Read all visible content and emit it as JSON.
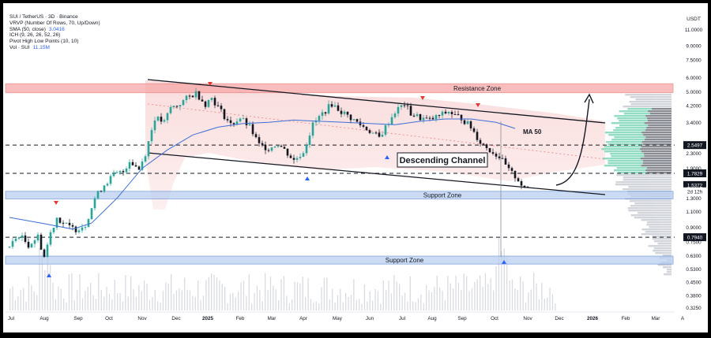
{
  "chart_data": {
    "type": "candlestick",
    "symbol": "SUI / TetherUS · 3D · Binance",
    "currency": "USDT",
    "indicators": [
      {
        "label": "VRVP (Number Of Rows, 70, Up/Down)",
        "value": ""
      },
      {
        "label": "SMA (50, close)",
        "value": "3.0416"
      },
      {
        "label": "ICH (9, 26, 26, 52, 26)",
        "value": ""
      },
      {
        "label": "Pivot High Low Points (10, 10)",
        "value": ""
      },
      {
        "label": "Vol · SUI",
        "value": "11.15M"
      }
    ],
    "y_scale": "log",
    "y_ticks": [
      "11.0000",
      "9.0000",
      "7.5000",
      "6.0000",
      "5.0000",
      "4.2000",
      "3.4000",
      "2.3000",
      "1.9000",
      "1.5000",
      "1.3000",
      "1.1000",
      "0.9000",
      "0.7500",
      "0.6300",
      "0.5300",
      "0.4500",
      "0.3800",
      "0.3250"
    ],
    "x_ticks": [
      "Jul",
      "Aug",
      "Sep",
      "Oct",
      "Nov",
      "Dec",
      "2025",
      "Feb",
      "Mar",
      "Apr",
      "May",
      "Jun",
      "Jul",
      "Aug",
      "Sep",
      "Oct",
      "Nov",
      "Dec",
      "2026",
      "Feb",
      "Mar",
      "A"
    ],
    "price_labels": [
      {
        "text": "2.5497",
        "price": 2.55,
        "color": "#131722"
      },
      {
        "text": "1.7829",
        "price": 1.7829,
        "color": "#131722"
      },
      {
        "text": "1.5372",
        "price": 1.5372,
        "color": "#131722"
      },
      {
        "text": "2d 12h",
        "price": 1.42,
        "color": "#131722"
      },
      {
        "text": "0.7940",
        "price": 0.794,
        "color": "#131722"
      }
    ],
    "zones": [
      {
        "label": "Resistance Zone",
        "from": 4.95,
        "to": 5.55,
        "color": "#f7a8a8"
      },
      {
        "label": "Support Zone",
        "from": 1.29,
        "to": 1.42,
        "color": "#b9cff0"
      },
      {
        "label": "Support Zone",
        "from": 0.565,
        "to": 0.625,
        "color": "#b9cff0"
      }
    ],
    "horizontal_levels": [
      2.55,
      1.7829,
      0.794
    ],
    "annotations": [
      "Descending Channel",
      "MA 50"
    ],
    "price_series": [
      {
        "t": 0,
        "p": 0.7
      },
      {
        "t": 3,
        "p": 0.82
      },
      {
        "t": 6,
        "p": 0.72
      },
      {
        "t": 9,
        "p": 0.8
      },
      {
        "t": 11,
        "p": 0.62
      },
      {
        "t": 13,
        "p": 0.84
      },
      {
        "t": 15,
        "p": 1.02
      },
      {
        "t": 17,
        "p": 0.95
      },
      {
        "t": 19,
        "p": 0.9
      },
      {
        "t": 21,
        "p": 0.88
      },
      {
        "t": 24,
        "p": 0.93
      },
      {
        "t": 27,
        "p": 1.3
      },
      {
        "t": 30,
        "p": 1.55
      },
      {
        "t": 33,
        "p": 1.75
      },
      {
        "t": 36,
        "p": 1.82
      },
      {
        "t": 38,
        "p": 2.1
      },
      {
        "t": 41,
        "p": 1.88
      },
      {
        "t": 43,
        "p": 2.3
      },
      {
        "t": 46,
        "p": 3.6
      },
      {
        "t": 49,
        "p": 3.4
      },
      {
        "t": 51,
        "p": 4.1
      },
      {
        "t": 53,
        "p": 4.2
      },
      {
        "t": 56,
        "p": 4.6
      },
      {
        "t": 59,
        "p": 4.95
      },
      {
        "t": 62,
        "p": 4.3
      },
      {
        "t": 64,
        "p": 4.65
      },
      {
        "t": 67,
        "p": 3.9
      },
      {
        "t": 70,
        "p": 3.3
      },
      {
        "t": 73,
        "p": 3.6
      },
      {
        "t": 76,
        "p": 3.2
      },
      {
        "t": 79,
        "p": 2.55
      },
      {
        "t": 82,
        "p": 2.45
      },
      {
        "t": 85,
        "p": 2.6
      },
      {
        "t": 87,
        "p": 2.4
      },
      {
        "t": 90,
        "p": 2.1
      },
      {
        "t": 93,
        "p": 2.35
      },
      {
        "t": 96,
        "p": 3.3
      },
      {
        "t": 99,
        "p": 3.8
      },
      {
        "t": 102,
        "p": 4.3
      },
      {
        "t": 105,
        "p": 3.9
      },
      {
        "t": 108,
        "p": 3.6
      },
      {
        "t": 111,
        "p": 3.3
      },
      {
        "t": 114,
        "p": 3.05
      },
      {
        "t": 117,
        "p": 2.8
      },
      {
        "t": 119,
        "p": 3.2
      },
      {
        "t": 122,
        "p": 3.9
      },
      {
        "t": 125,
        "p": 4.3
      },
      {
        "t": 127,
        "p": 3.8
      },
      {
        "t": 130,
        "p": 3.6
      },
      {
        "t": 133,
        "p": 3.5
      },
      {
        "t": 136,
        "p": 3.7
      },
      {
        "t": 139,
        "p": 3.9
      },
      {
        "t": 141,
        "p": 3.7
      },
      {
        "t": 143,
        "p": 3.6
      },
      {
        "t": 146,
        "p": 3.2
      },
      {
        "t": 149,
        "p": 2.65
      },
      {
        "t": 152,
        "p": 2.4
      },
      {
        "t": 155,
        "p": 2.2
      },
      {
        "t": 158,
        "p": 1.85
      },
      {
        "t": 161,
        "p": 1.65
      },
      {
        "t": 163,
        "p": 1.45
      },
      {
        "t": 165,
        "p": 1.54
      }
    ],
    "ma50_series": [
      {
        "t": 0,
        "p": 1.02
      },
      {
        "t": 10,
        "p": 0.95
      },
      {
        "t": 20,
        "p": 0.88
      },
      {
        "t": 26,
        "p": 0.95
      },
      {
        "t": 34,
        "p": 1.3
      },
      {
        "t": 42,
        "p": 1.9
      },
      {
        "t": 50,
        "p": 2.4
      },
      {
        "t": 58,
        "p": 2.9
      },
      {
        "t": 66,
        "p": 3.2
      },
      {
        "t": 74,
        "p": 3.35
      },
      {
        "t": 82,
        "p": 3.4
      },
      {
        "t": 90,
        "p": 3.5
      },
      {
        "t": 98,
        "p": 3.45
      },
      {
        "t": 106,
        "p": 3.4
      },
      {
        "t": 114,
        "p": 3.35
      },
      {
        "t": 122,
        "p": 3.3
      },
      {
        "t": 130,
        "p": 3.45
      },
      {
        "t": 138,
        "p": 3.55
      },
      {
        "t": 146,
        "p": 3.55
      },
      {
        "t": 154,
        "p": 3.4
      },
      {
        "t": 160,
        "p": 3.15
      }
    ]
  }
}
